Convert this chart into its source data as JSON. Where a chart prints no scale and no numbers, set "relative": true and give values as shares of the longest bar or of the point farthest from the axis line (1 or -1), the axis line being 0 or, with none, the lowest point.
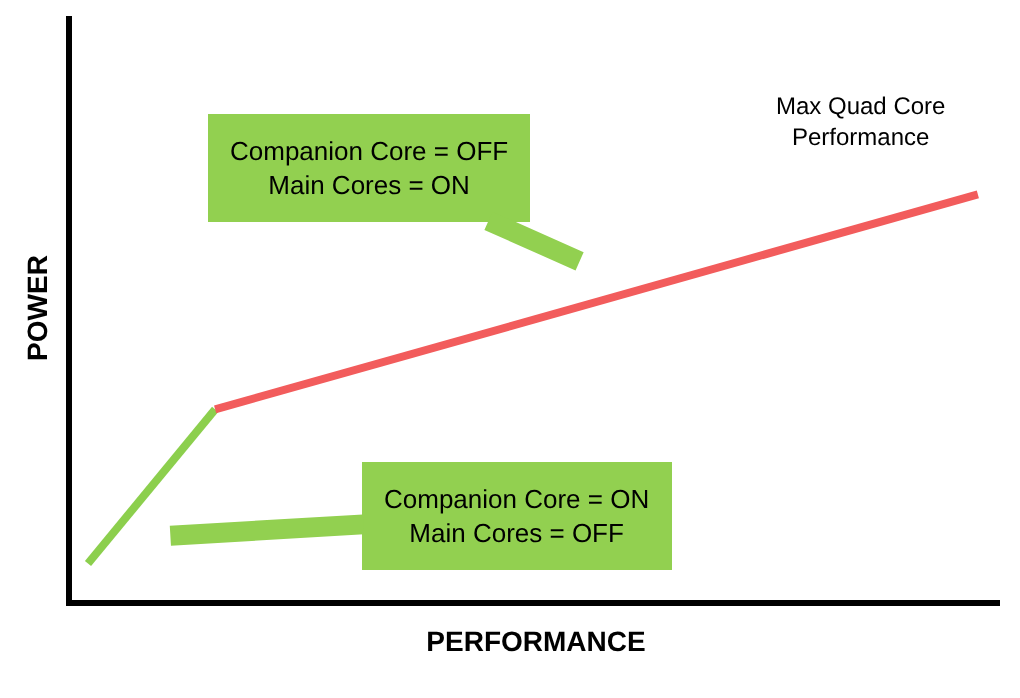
{
  "chart_data": {
    "type": "line",
    "relative": true,
    "xlabel": "PERFORMANCE",
    "ylabel": "POWER",
    "marker": "none",
    "line_style": "solid",
    "categories": [
      null,
      null,
      null,
      null,
      null,
      null,
      null,
      null
    ],
    "series": [
      {
        "color": "#8ccf4d",
        "values": [
          0.09,
          0.47,
          null,
          null,
          null,
          null,
          null,
          null
        ]
      },
      {
        "color": "#f25c5c",
        "values": [
          null,
          0.47,
          null,
          null,
          null,
          null,
          null,
          1.0
        ]
      }
    ],
    "annotations": [
      "Companion Core = OFF\nMain Cores = ON",
      "Companion Core = ON\nMain Cores = OFF",
      "Max Quad Core\nPerformance"
    ]
  }
}
